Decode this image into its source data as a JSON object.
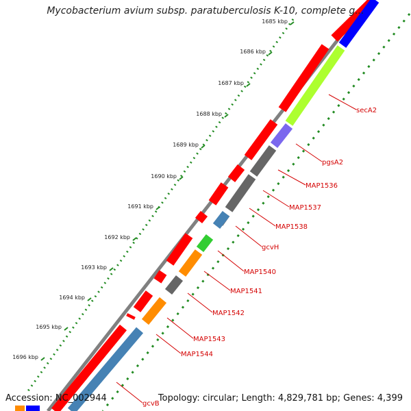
{
  "title": "Mycobacterium avium subsp. paratuberculosis K-10, complete g...",
  "footer": {
    "accession": "Accession: NC_002944",
    "topology": "Topology: circular; Length: 4,829,781 bp; Genes: 4,399"
  },
  "kbp_ticks": [
    "1685 kbp",
    "1686 kbp",
    "1687 kbp",
    "1688 kbp",
    "1689 kbp",
    "1690 kbp",
    "1691 kbp",
    "1692 kbp",
    "1693 kbp",
    "1694 kbp",
    "1695 kbp",
    "1696 kbp"
  ],
  "gene_labels": [
    "secA2",
    "pgsA2",
    "MAP1536",
    "MAP1537",
    "MAP1538",
    "gcvH",
    "MAP1540",
    "MAP1541",
    "MAP1542",
    "MAP1543",
    "MAP1544",
    "gcvB"
  ],
  "colors": {
    "forward_cds": "#ff0000",
    "secA2": "#adff2f",
    "pgsA2": "#7b68ee",
    "MAP1536": "#666666",
    "MAP1537": "#666666",
    "MAP1538": "#666666",
    "gcvH": "#4682b4",
    "MAP1540": "#32cd32",
    "MAP1541": "#ff8c00",
    "MAP1542": "#666666",
    "MAP1543": "#ff8c00",
    "MAP1544": "#4682b4",
    "gcvB": "#4682b4",
    "backbone": "#808080",
    "tick_green": "#228b22",
    "label_red": "#d40000"
  }
}
